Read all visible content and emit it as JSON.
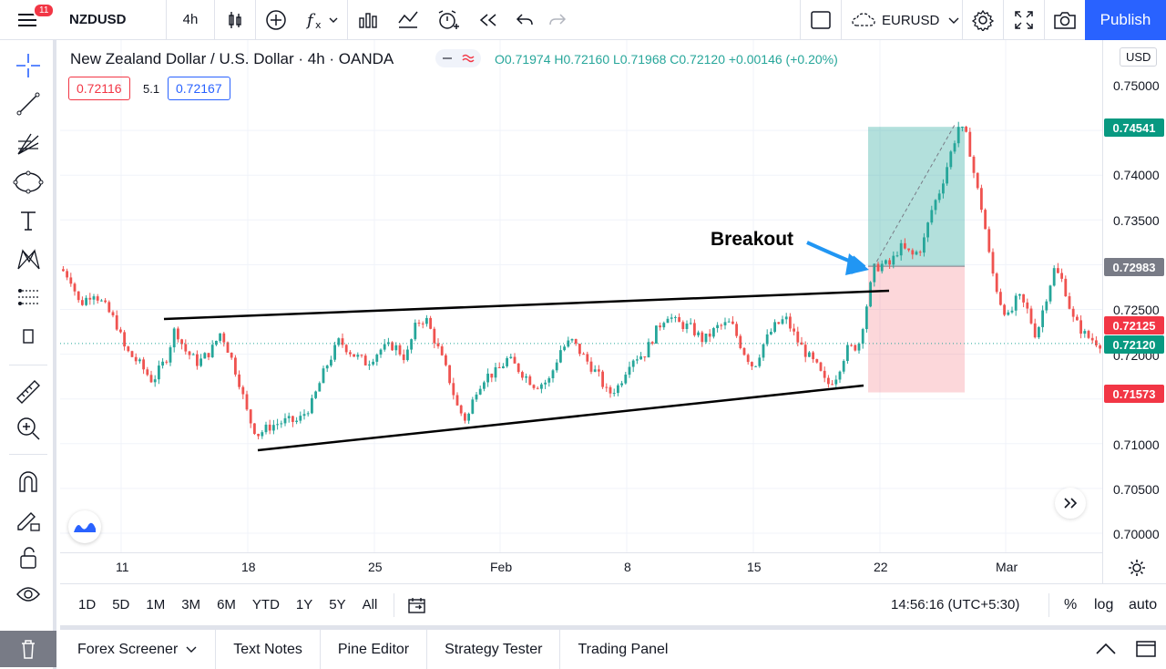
{
  "topbar": {
    "notification_count": "11",
    "symbol": "NZDUSD",
    "interval": "4h",
    "compare_symbol": "EURUSD",
    "publish_label": "Publish"
  },
  "legend": {
    "title": "New Zealand Dollar / U.S. Dollar · 4h · OANDA",
    "ohlc": "O0.71974 H0.72160 L0.71968 C0.72120 +0.00146 (+0.20%)",
    "bid": "0.72116",
    "spread": "5.1",
    "ask": "0.72167"
  },
  "price_axis": {
    "currency": "USD",
    "ticks": [
      "0.75000",
      "0.74000",
      "0.73500",
      "0.72500",
      "0.72000",
      "0.71000",
      "0.70500",
      "0.70000"
    ],
    "tags": [
      {
        "value": "0.74541",
        "color": "#089981"
      },
      {
        "value": "0.72983",
        "color": "#787b86"
      },
      {
        "value": "0.72125",
        "color": "#f23645"
      },
      {
        "value": "0.72120",
        "color": "#089981"
      },
      {
        "value": "0.71573",
        "color": "#f23645"
      }
    ]
  },
  "time_axis": {
    "ticks": [
      "11",
      "18",
      "25",
      "Feb",
      "8",
      "15",
      "22",
      "Mar"
    ]
  },
  "annotation": {
    "text": "Breakout"
  },
  "bottom": {
    "ranges": [
      "1D",
      "5D",
      "1M",
      "3M",
      "6M",
      "YTD",
      "1Y",
      "5Y",
      "All"
    ],
    "clock": "14:56:16 (UTC+5:30)",
    "percent": "%",
    "log": "log",
    "auto": "auto"
  },
  "panels": {
    "tabs": [
      "Forex Screener",
      "Text Notes",
      "Pine Editor",
      "Strategy Tester",
      "Trading Panel"
    ]
  },
  "colors": {
    "up": "#26a69a",
    "down": "#ef5350",
    "accent": "#2962ff"
  }
}
